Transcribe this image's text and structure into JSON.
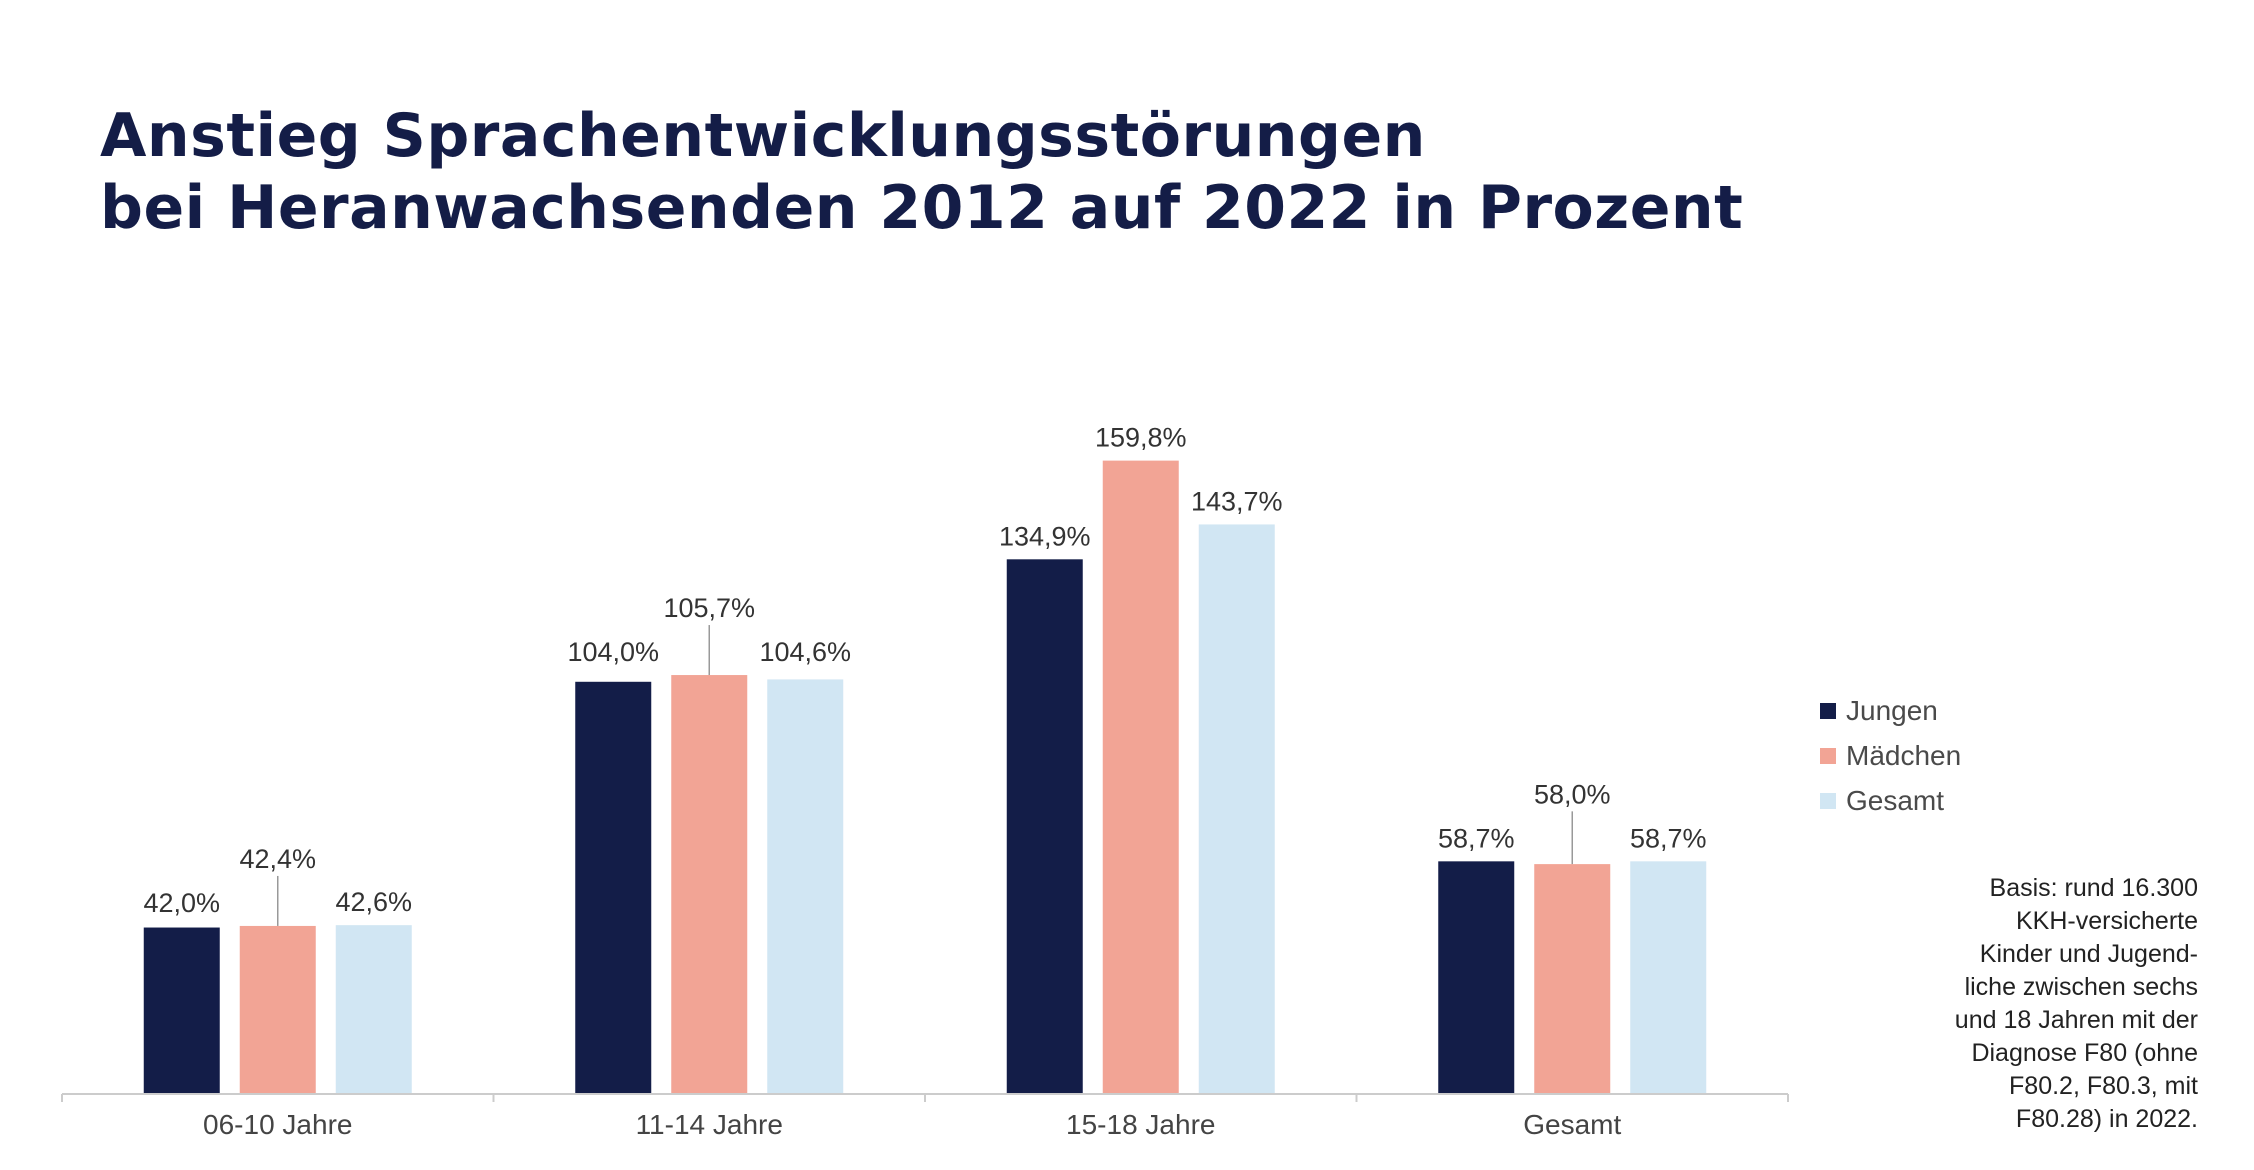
{
  "title_lines": [
    "Anstieg Sprachentwicklungsstörungen",
    "bei Heranwachsenden 2012 auf 2022 in Prozent"
  ],
  "colors": {
    "title": "#141d47",
    "jungen": "#131d48",
    "maedchen": "#f2a495",
    "gesamt": "#d1e6f3",
    "axis": "#cccccc",
    "label": "#333333"
  },
  "chart_data": {
    "type": "bar",
    "title": "Anstieg Sprachentwicklungsstörungen bei Heranwachsenden 2012 auf 2022 in Prozent",
    "categories": [
      "06-10 Jahre",
      "11-14 Jahre",
      "15-18 Jahre",
      "Gesamt"
    ],
    "series": [
      {
        "name": "Jungen",
        "values": [
          42.0,
          104.0,
          134.9,
          58.7
        ],
        "labels": [
          "42,0%",
          "104,0%",
          "134,9%",
          "58,7%"
        ]
      },
      {
        "name": "Mädchen",
        "values": [
          42.4,
          105.7,
          159.8,
          58.0
        ],
        "labels": [
          "42,4%",
          "105,7%",
          "159,8%",
          "58,0%"
        ]
      },
      {
        "name": "Gesamt",
        "values": [
          42.6,
          104.6,
          143.7,
          58.7
        ],
        "labels": [
          "42,6%",
          "104,6%",
          "143,7%",
          "58,7%"
        ]
      }
    ],
    "xlabel": "",
    "ylabel": "",
    "ylim": [
      0,
      160
    ],
    "grid": false,
    "legend_position": "right"
  },
  "note_lines": [
    "Basis: rund 16.300",
    "KKH-versicherte",
    "Kinder und Jugend-",
    "liche zwischen sechs",
    "und 18 Jahren mit der",
    "Diagnose F80 (ohne",
    "F80.2, F80.3, mit",
    "F80.28) in 2022."
  ]
}
